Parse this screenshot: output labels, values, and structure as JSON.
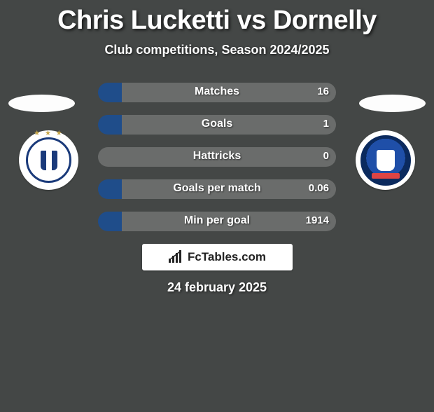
{
  "title": "Chris Lucketti vs Dornelly",
  "subtitle": "Club competitions, Season 2024/2025",
  "date": "24 february 2025",
  "logo": "FcTables.com",
  "colors": {
    "background": "#444746",
    "left_bar": "#1f4d8a",
    "right_bar": "#6a6c6b",
    "text": "#ffffff"
  },
  "stats": [
    {
      "label": "Matches",
      "left_value": "",
      "right_value": "16",
      "left_pct": 10,
      "right_pct": 90
    },
    {
      "label": "Goals",
      "left_value": "",
      "right_value": "1",
      "left_pct": 10,
      "right_pct": 90
    },
    {
      "label": "Hattricks",
      "left_value": "",
      "right_value": "0",
      "left_pct": 0,
      "right_pct": 100
    },
    {
      "label": "Goals per match",
      "left_value": "",
      "right_value": "0.06",
      "left_pct": 10,
      "right_pct": 90
    },
    {
      "label": "Min per goal",
      "left_value": "",
      "right_value": "1914",
      "left_pct": 10,
      "right_pct": 90
    }
  ]
}
